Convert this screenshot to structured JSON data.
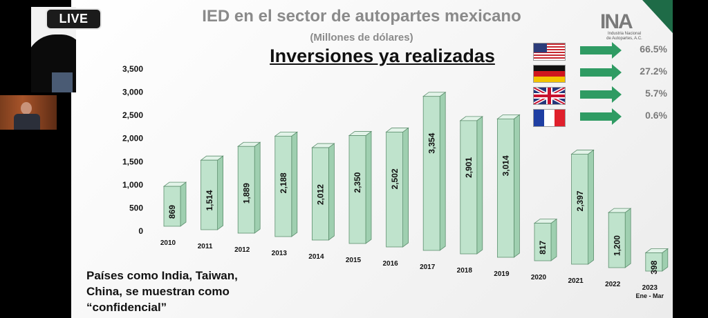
{
  "live": {
    "label": "LIVE"
  },
  "slide": {
    "title": "IED en el sector de autopartes mexicano",
    "subtitle": "(Millones de dólares)",
    "heading": "Inversiones ya realizadas",
    "logo": {
      "mark": "INA",
      "line1": "Industria Nacional",
      "line2": "de Autopartes, A.C."
    },
    "note": [
      "Países como India, Taiwan,",
      "China, se muestran como",
      "“confidencial”"
    ]
  },
  "countries": [
    {
      "flag": "usa-flag-icon",
      "pct": "66.5%"
    },
    {
      "flag": "germany-flag-icon",
      "pct": "27.2%"
    },
    {
      "flag": "uk-flag-icon",
      "pct": "5.7%"
    },
    {
      "flag": "france-flag-icon",
      "pct": "0.6%"
    }
  ],
  "colors": {
    "bar": "#bfe3cc",
    "bar_dark": "#9fcfb0",
    "bar_top": "#e2f3e8",
    "bar_edge": "#5d8f6e",
    "accent": "#2f9b63",
    "brand": "#1e6b47"
  },
  "chart_data": {
    "type": "bar",
    "title": "",
    "categories": [
      "2010",
      "2011",
      "2012",
      "2013",
      "2014",
      "2015",
      "2016",
      "2017",
      "2018",
      "2019",
      "2020",
      "2021",
      "2022",
      "2023"
    ],
    "category_sub": [
      "",
      "",
      "",
      "",
      "",
      "",
      "",
      "",
      "",
      "",
      "",
      "",
      "",
      "Ene - Mar"
    ],
    "values": [
      869,
      1514,
      1889,
      2188,
      2012,
      2350,
      2502,
      3354,
      2901,
      3014,
      817,
      2397,
      1200,
      398
    ],
    "value_labels": [
      "869",
      "1,514",
      "1,889",
      "2,188",
      "2,012",
      "2,350",
      "2,502",
      "3,354",
      "2,901",
      "3,014",
      "817",
      "2,397",
      "1,200",
      "398"
    ],
    "ylim": [
      0,
      3500
    ],
    "yticks": [
      "0",
      "500",
      "1,000",
      "1,500",
      "2,000",
      "2,500",
      "3,000",
      "3,500"
    ],
    "ytick_values": [
      0,
      500,
      1000,
      1500,
      2000,
      2500,
      3000,
      3500
    ],
    "xlabel": "",
    "ylabel": "",
    "grid": false
  }
}
